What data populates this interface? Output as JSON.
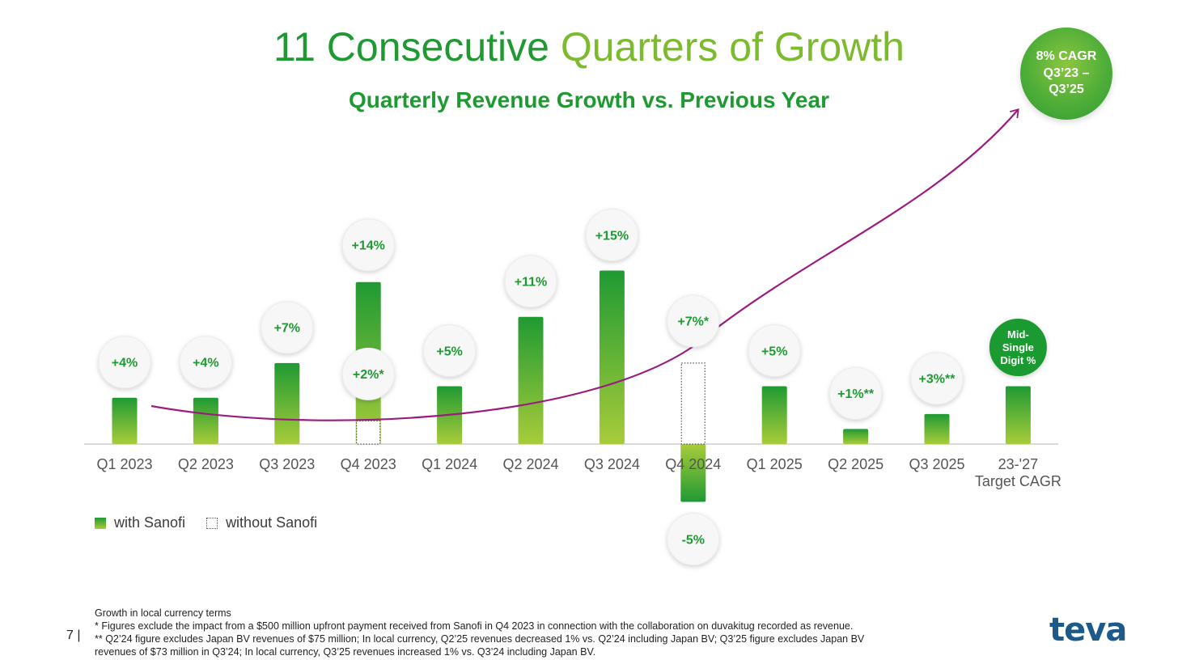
{
  "header": {
    "title_part1": "11 Consecutive ",
    "title_part2": "Quarters of Growth",
    "subtitle": "Quarterly Revenue Growth vs. Previous Year",
    "cagr_badge": "8% CAGR\nQ3’23 –\nQ3’25"
  },
  "legend": {
    "with_label": "with Sanofi",
    "without_label": "without Sanofi"
  },
  "footnotes": [
    "Growth in local currency terms",
    "* Figures exclude the impact from a $500 million upfront payment received from Sanofi in Q4 2023 in connection with the collaboration on duvakitug recorded as revenue.",
    "** Q2’24 figure excludes Japan BV revenues of $75 million; In local currency, Q2’25 revenues decreased 1% vs. Q2’24 including Japan BV; Q3’25 figure excludes Japan BV",
    "revenues of $73 million in Q3’24; In local currency, Q3’25 revenues increased 1% vs. Q3’24 including Japan BV."
  ],
  "page_number": "7 |",
  "logo": "teva",
  "colors": {
    "green_dark": "#1f9a33",
    "green_light": "#a8cc3a",
    "trend_line": "#9b1b7e",
    "label_green": "#1f9a33"
  },
  "chart_data": {
    "type": "bar",
    "ylim": [
      -6,
      16
    ],
    "categories": [
      "Q1 2023",
      "Q2 2023",
      "Q3 2023",
      "Q4 2023",
      "Q1 2024",
      "Q2 2024",
      "Q3 2024",
      "Q4 2024",
      "Q1 2025",
      "Q2 2025",
      "Q3 2025",
      "23-'27"
    ],
    "category_sublabels": [
      "",
      "",
      "",
      "",
      "",
      "",
      "",
      "",
      "",
      "",
      "",
      "Target CAGR"
    ],
    "series": [
      {
        "name": "with Sanofi",
        "values": [
          4,
          4,
          7,
          14,
          5,
          11,
          15,
          -5,
          5,
          1.3,
          2.6,
          5
        ],
        "labels": [
          "+4%",
          "+4%",
          "+7%",
          "+14%",
          "+5%",
          "+11%",
          "+15%",
          "-5%",
          "+5%",
          "+1%**",
          "+3%**",
          "Mid-\nSingle\nDigit %"
        ]
      },
      {
        "name": "without Sanofi",
        "values": [
          null,
          null,
          null,
          2,
          null,
          null,
          null,
          7,
          null,
          null,
          null,
          null
        ],
        "labels": [
          null,
          null,
          null,
          "+2%*",
          null,
          null,
          null,
          "+7%*",
          null,
          null,
          null,
          null
        ]
      }
    ]
  }
}
